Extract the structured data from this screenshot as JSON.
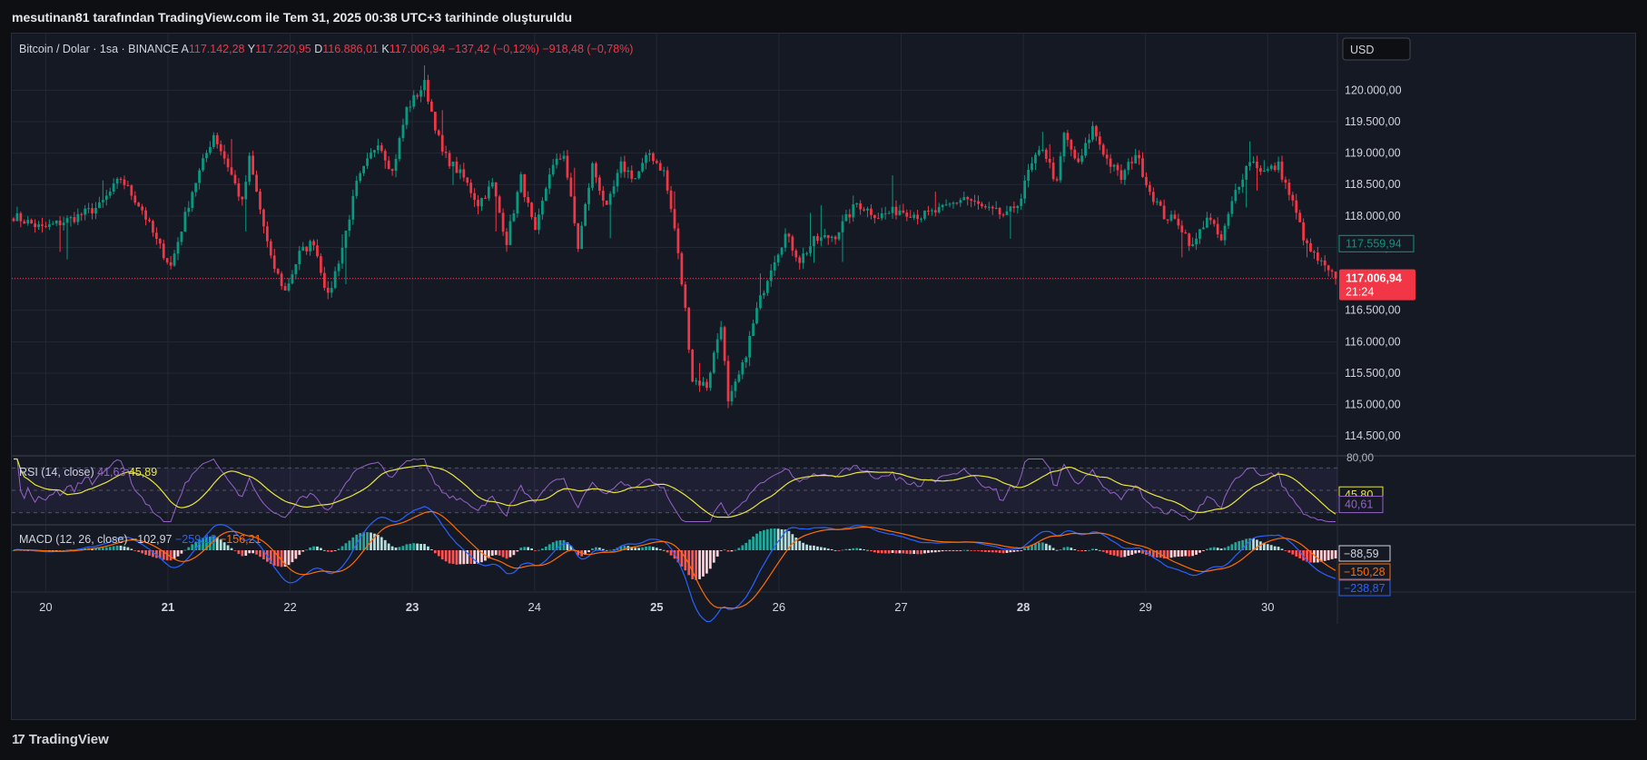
{
  "header": {
    "caption": "mesutinan81 tarafından TradingView.com ile Tem 31, 2025 00:38 UTC+3 tarihinde oluşturuldu"
  },
  "footer": {
    "brand_logo": "17",
    "brand_name": "TradingView"
  },
  "colors": {
    "up": "#089981",
    "down": "#f23645",
    "rsi": "#9563c8",
    "rsi_ma": "#e9e63c",
    "macd": "#2962ff",
    "signal": "#ff6d00",
    "grid": "#242833",
    "text": "#b2b5be"
  },
  "chart_data": [
    {
      "type": "candlestick",
      "title": "Bitcoin / Dolar · 1sa · BINANCE",
      "ohlc_labels": {
        "o_label": "A",
        "o_value": "117.142,28",
        "h_label": "Y",
        "h_value": "117.220,95",
        "l_label": "D",
        "l_value": "116.886,01",
        "c_label": "K",
        "c_value": "117.006,94",
        "change": "−137,42 (−0,12%)",
        "change2": "−918,48 (−0,78%)"
      },
      "currency": "USD",
      "y_ticks": [
        114500,
        115000,
        115500,
        116000,
        116500,
        117000,
        117500,
        118000,
        118500,
        119000,
        119500,
        120000
      ],
      "y_tick_labels": [
        "114.500,00",
        "115.000,00",
        "115.500,00",
        "116.000,00",
        "116.500,00",
        "117.000,00",
        "117.500,00",
        "118.000,00",
        "118.500,00",
        "119.000,00",
        "119.500,00",
        "120.000,00"
      ],
      "ylim": [
        114200,
        120900
      ],
      "x_labels": [
        "20",
        "21",
        "22",
        "23",
        "24",
        "25",
        "26",
        "27",
        "28",
        "29",
        "30"
      ],
      "bold_x_labels": [
        "21",
        "23",
        "25",
        "28"
      ],
      "last_price": 117006.94,
      "last_price_label": "117.006,94",
      "countdown": "21:24",
      "prev_price": 117559.94,
      "prev_price_label": "117.559,94",
      "anchors": [
        [
          0,
          118000
        ],
        [
          8,
          117800
        ],
        [
          16,
          117950
        ],
        [
          24,
          118150
        ],
        [
          30,
          118600
        ],
        [
          36,
          118100
        ],
        [
          40,
          117600
        ],
        [
          44,
          117200
        ],
        [
          50,
          118400
        ],
        [
          56,
          119300
        ],
        [
          60,
          118800
        ],
        [
          64,
          118200
        ],
        [
          66,
          118900
        ],
        [
          72,
          117300
        ],
        [
          76,
          116800
        ],
        [
          80,
          117400
        ],
        [
          84,
          117600
        ],
        [
          88,
          116700
        ],
        [
          92,
          117500
        ],
        [
          96,
          118500
        ],
        [
          102,
          119200
        ],
        [
          106,
          118700
        ],
        [
          110,
          119700
        ],
        [
          115,
          120100
        ],
        [
          120,
          119000
        ],
        [
          126,
          118600
        ],
        [
          130,
          118200
        ],
        [
          134,
          118500
        ],
        [
          138,
          117600
        ],
        [
          142,
          118600
        ],
        [
          146,
          117700
        ],
        [
          150,
          118700
        ],
        [
          154,
          119000
        ],
        [
          158,
          117500
        ],
        [
          162,
          118800
        ],
        [
          166,
          118100
        ],
        [
          170,
          118800
        ],
        [
          174,
          118600
        ],
        [
          178,
          119000
        ],
        [
          182,
          118700
        ],
        [
          185,
          117800
        ],
        [
          188,
          116500
        ],
        [
          190,
          115400
        ],
        [
          194,
          115300
        ],
        [
          198,
          116300
        ],
        [
          200,
          115000
        ],
        [
          204,
          115600
        ],
        [
          208,
          116500
        ],
        [
          212,
          117200
        ],
        [
          216,
          117700
        ],
        [
          220,
          117300
        ],
        [
          224,
          117600
        ],
        [
          230,
          117700
        ],
        [
          236,
          118200
        ],
        [
          242,
          118000
        ],
        [
          248,
          118100
        ],
        [
          254,
          118000
        ],
        [
          260,
          118100
        ],
        [
          266,
          118300
        ],
        [
          272,
          118100
        ],
        [
          278,
          118000
        ],
        [
          282,
          118300
        ],
        [
          284,
          118700
        ],
        [
          288,
          119100
        ],
        [
          292,
          118500
        ],
        [
          294,
          119300
        ],
        [
          298,
          118800
        ],
        [
          302,
          119400
        ],
        [
          306,
          118900
        ],
        [
          310,
          118600
        ],
        [
          314,
          119000
        ],
        [
          318,
          118400
        ],
        [
          322,
          118000
        ],
        [
          326,
          117900
        ],
        [
          330,
          117500
        ],
        [
          334,
          118000
        ],
        [
          338,
          117600
        ],
        [
          342,
          118400
        ],
        [
          346,
          118900
        ],
        [
          350,
          118700
        ],
        [
          354,
          118800
        ],
        [
          358,
          118200
        ],
        [
          362,
          117500
        ],
        [
          365,
          117300
        ],
        [
          368,
          117100
        ],
        [
          370,
          117000
        ]
      ]
    },
    {
      "type": "line",
      "title": "RSI (14, close)",
      "values_display": [
        "41,63",
        "45,89"
      ],
      "axis_label_top": "80,00",
      "last_values": [
        {
          "name": "RSI-based MA",
          "value": 45.8,
          "label": "45,80"
        },
        {
          "name": "RSI",
          "value": 40.61,
          "label": "40,61"
        }
      ],
      "ylim": [
        20,
        80
      ],
      "bands": [
        30,
        50,
        70
      ]
    },
    {
      "type": "bar",
      "title": "MACD (12, 26, close)",
      "values_display": [
        "−102,97",
        "−259,18",
        "−156,21"
      ],
      "last_values": [
        {
          "name": "Histogram",
          "value": -88.59,
          "label": "−88,59"
        },
        {
          "name": "Signal",
          "value": -150.28,
          "label": "−150,28"
        },
        {
          "name": "MACD",
          "value": -238.87,
          "label": "−238,87"
        }
      ],
      "ylim": [
        -500,
        300
      ]
    }
  ]
}
